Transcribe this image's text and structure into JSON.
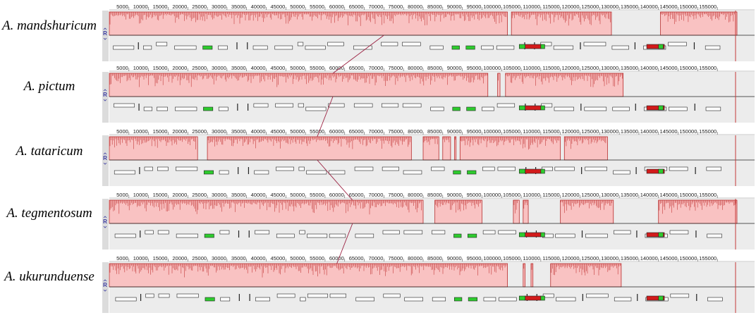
{
  "alignment": {
    "genome_length": 160000,
    "tick_step": 5000,
    "tick_labels": [
      "5000",
      "10000",
      "15000",
      "20000",
      "25000",
      "30000",
      "35000",
      "40000",
      "45000",
      "50000",
      "55000",
      "60000",
      "65000",
      "70000",
      "75000",
      "80000",
      "85000",
      "90000",
      "95000",
      "100000",
      "105000",
      "110000",
      "115000",
      "120000",
      "125000",
      "130000",
      "135000",
      "140000",
      "145000",
      "150000",
      "155000"
    ],
    "control_glyph": "R",
    "colors": {
      "block_fill": "#f9c2c2",
      "block_edge": "#b01515",
      "similarity_line": "#c43a3a",
      "panel_background": "#ececec",
      "center_line": "#222222",
      "gene_outline": "#222222",
      "rrna_gene": "#2ecc2e",
      "trna_gene": "#d21b1b",
      "connector": "#9b2040"
    },
    "tracks": [
      {
        "species": "A. mandshuricum",
        "gaps": [
          [
            101500,
            102500
          ],
          [
            128000,
            140500
          ]
        ]
      },
      {
        "species": "A. pictum",
        "gaps": [
          [
            96500,
            99000
          ],
          [
            99600,
            101000
          ],
          [
            131000,
            160000
          ]
        ]
      },
      {
        "species": "A. tataricum",
        "gaps": [
          [
            22500,
            25000
          ],
          [
            77000,
            80000
          ],
          [
            84000,
            85000
          ],
          [
            87000,
            88000
          ],
          [
            88400,
            89400
          ],
          [
            115000,
            116000
          ],
          [
            127000,
            160000
          ]
        ]
      },
      {
        "species": "A. tegmentosum",
        "gaps": [
          [
            80000,
            83000
          ],
          [
            95000,
            103000
          ],
          [
            104500,
            105500
          ],
          [
            106800,
            115000
          ],
          [
            128500,
            140000
          ]
        ]
      },
      {
        "species": "A. ukurunduense",
        "gaps": [
          [
            101500,
            105500
          ],
          [
            106000,
            107500
          ],
          [
            108000,
            112500
          ],
          [
            130500,
            160000
          ]
        ]
      }
    ]
  }
}
